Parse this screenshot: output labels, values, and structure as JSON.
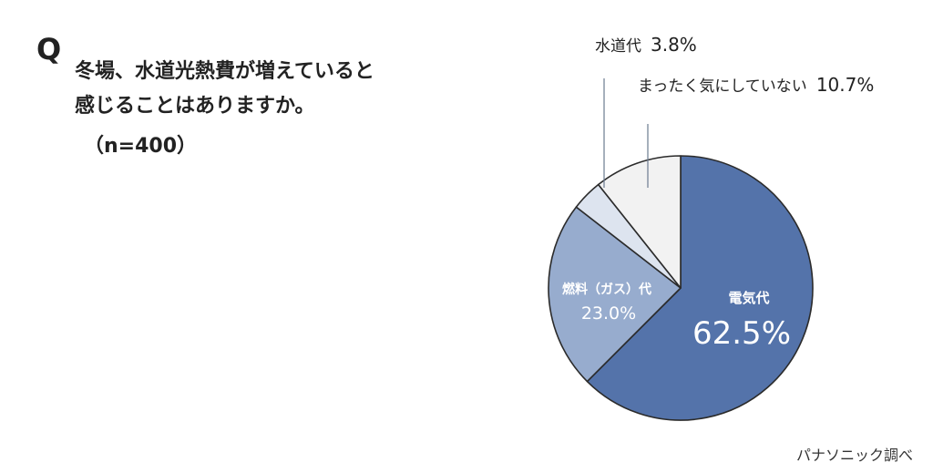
{
  "question": {
    "mark": "Q",
    "line1": "冬場、水道光熱費が増えていると",
    "line2": "感じることはありますか。",
    "sample_size": "（n=400）"
  },
  "chart_data": {
    "type": "pie",
    "title": "",
    "slices": [
      {
        "label": "電気代",
        "value": 62.5,
        "display": "62.5%",
        "color": "#5473aa"
      },
      {
        "label": "燃料（ガス）代",
        "value": 23.0,
        "display": "23.0%",
        "color": "#97acce"
      },
      {
        "label": "水道代",
        "value": 3.8,
        "display": "3.8%",
        "color": "#dde4ef"
      },
      {
        "label": "まったく気にしていない",
        "value": 10.7,
        "display": "10.7%",
        "color": "#f2f2f2"
      }
    ],
    "start": "12 o'clock",
    "direction": "clockwise",
    "legend": "none"
  },
  "credit": "パナソニック調べ"
}
